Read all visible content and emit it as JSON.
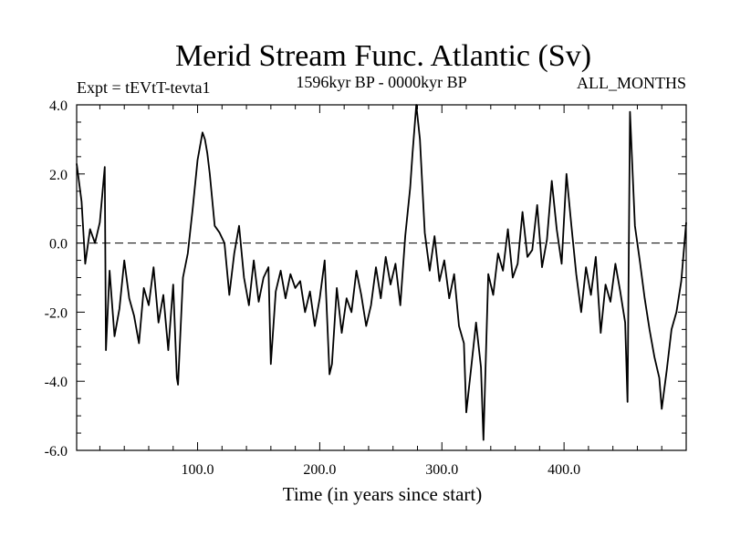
{
  "chart_data": {
    "type": "line",
    "title": "Merid Stream Func. Atlantic (Sv)",
    "subtitle_left": "Expt = tEVtT-tevta1",
    "subtitle_center": "1596kyr BP - 0000kyr BP",
    "subtitle_right": "ALL_MONTHS",
    "xlabel": "Time (in years since start)",
    "ylabel": "",
    "xlim": [
      1,
      500
    ],
    "ylim": [
      -6,
      4
    ],
    "xticks": [
      100,
      200,
      300,
      400
    ],
    "xtick_labels": [
      "100.0",
      "200.0",
      "300.0",
      "400.0"
    ],
    "yticks": [
      4,
      2,
      0,
      -2,
      -4,
      -6
    ],
    "ytick_labels": [
      "4.0",
      "2.0",
      "0.0",
      "-2.0",
      "-4.0",
      "-6.0"
    ],
    "reference_line": 0,
    "grid": false,
    "series": [
      {
        "name": "Merid Stream Func. Atlantic",
        "x": [
          1,
          5,
          8,
          12,
          16,
          20,
          24,
          25,
          28,
          32,
          36,
          40,
          44,
          48,
          52,
          56,
          60,
          64,
          68,
          72,
          76,
          80,
          83,
          84,
          88,
          92,
          96,
          100,
          104,
          106,
          108,
          110,
          114,
          118,
          122,
          126,
          130,
          134,
          138,
          142,
          146,
          150,
          154,
          158,
          160,
          164,
          168,
          172,
          176,
          180,
          184,
          188,
          192,
          196,
          200,
          204,
          208,
          210,
          214,
          218,
          222,
          226,
          230,
          234,
          238,
          242,
          246,
          250,
          254,
          258,
          262,
          266,
          270,
          274,
          276,
          279,
          282,
          286,
          290,
          294,
          298,
          302,
          306,
          310,
          314,
          318,
          320,
          324,
          328,
          332,
          334,
          338,
          342,
          346,
          350,
          354,
          358,
          362,
          366,
          370,
          374,
          378,
          382,
          386,
          390,
          394,
          398,
          402,
          406,
          410,
          414,
          418,
          422,
          426,
          430,
          434,
          438,
          442,
          446,
          450,
          452,
          454,
          458,
          462,
          466,
          470,
          474,
          478,
          480,
          484,
          488,
          492,
          496,
          500
        ],
        "values": [
          2.3,
          1.2,
          -0.6,
          0.4,
          0.0,
          0.6,
          2.2,
          -3.1,
          -0.8,
          -2.7,
          -1.9,
          -0.5,
          -1.6,
          -2.1,
          -2.9,
          -1.3,
          -1.8,
          -0.7,
          -2.3,
          -1.5,
          -3.1,
          -1.2,
          -3.9,
          -4.1,
          -1.0,
          -0.3,
          1.0,
          2.4,
          3.2,
          3.0,
          2.6,
          2.0,
          0.5,
          0.3,
          0.0,
          -1.5,
          -0.3,
          0.5,
          -1.0,
          -1.8,
          -0.5,
          -1.7,
          -1.0,
          -0.7,
          -3.5,
          -1.4,
          -0.8,
          -1.6,
          -0.9,
          -1.3,
          -1.1,
          -2.0,
          -1.4,
          -2.4,
          -1.6,
          -0.5,
          -3.8,
          -3.5,
          -1.3,
          -2.6,
          -1.6,
          -2.0,
          -0.8,
          -1.5,
          -2.4,
          -1.8,
          -0.7,
          -1.6,
          -0.4,
          -1.2,
          -0.6,
          -1.8,
          0.2,
          1.6,
          2.6,
          4.0,
          3.0,
          0.3,
          -0.8,
          0.2,
          -1.1,
          -0.5,
          -1.6,
          -0.9,
          -2.4,
          -2.9,
          -4.9,
          -3.6,
          -2.3,
          -3.6,
          -5.7,
          -0.9,
          -1.5,
          -0.3,
          -0.8,
          0.4,
          -1.0,
          -0.6,
          0.9,
          -0.4,
          -0.2,
          1.1,
          -0.7,
          0.1,
          1.8,
          0.4,
          -0.6,
          2.0,
          0.5,
          -0.9,
          -2.0,
          -0.7,
          -1.5,
          -0.4,
          -2.6,
          -1.2,
          -1.7,
          -0.6,
          -1.4,
          -2.3,
          -4.6,
          3.8,
          0.5,
          -0.5,
          -1.6,
          -2.5,
          -3.3,
          -3.9,
          -4.8,
          -3.7,
          -2.5,
          -2.0,
          -1.1,
          0.6
        ]
      }
    ]
  }
}
